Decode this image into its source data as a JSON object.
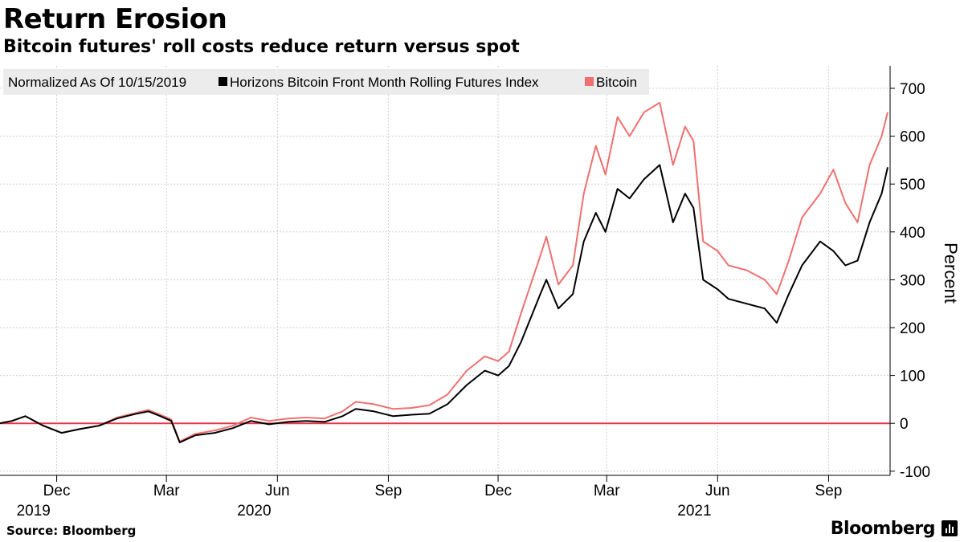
{
  "header": {
    "title": "Return Erosion",
    "subtitle": "Bitcoin futures' roll costs reduce return versus spot"
  },
  "footer": {
    "source": "Source: Bloomberg",
    "brand": "Bloomberg"
  },
  "chart_data": {
    "type": "line",
    "legend": {
      "note": "Normalized As Of 10/15/2019",
      "placement": "top-left"
    },
    "ylabel": "Percent",
    "xlabel": "",
    "ylim": [
      -100,
      700
    ],
    "xlim": [
      "2019-10-15",
      "2021-10-22"
    ],
    "y_ticks": [
      -100,
      0,
      100,
      200,
      300,
      400,
      500,
      600,
      700
    ],
    "y_axis_side": "right",
    "x_ticks": [
      {
        "date": "2019-12-01",
        "label": "Dec",
        "year": "2019"
      },
      {
        "date": "2020-03-01",
        "label": "Mar",
        "year": ""
      },
      {
        "date": "2020-06-01",
        "label": "Jun",
        "year": "2020"
      },
      {
        "date": "2020-09-01",
        "label": "Sep",
        "year": ""
      },
      {
        "date": "2020-12-01",
        "label": "Dec",
        "year": ""
      },
      {
        "date": "2021-03-01",
        "label": "Mar",
        "year": ""
      },
      {
        "date": "2021-06-01",
        "label": "Jun",
        "year": "2021"
      },
      {
        "date": "2021-09-01",
        "label": "Sep",
        "year": ""
      }
    ],
    "grid": true,
    "reference_line": {
      "y": 0,
      "color": "#e8364a"
    },
    "series": [
      {
        "name": "Horizons Bitcoin Front Month Rolling Futures Index",
        "color": "#000000",
        "points": [
          [
            "2019-10-15",
            0
          ],
          [
            "2019-10-25",
            5
          ],
          [
            "2019-11-05",
            15
          ],
          [
            "2019-11-20",
            -5
          ],
          [
            "2019-12-05",
            -20
          ],
          [
            "2019-12-20",
            -12
          ],
          [
            "2020-01-05",
            -5
          ],
          [
            "2020-01-20",
            10
          ],
          [
            "2020-02-05",
            20
          ],
          [
            "2020-02-15",
            25
          ],
          [
            "2020-02-25",
            15
          ],
          [
            "2020-03-05",
            5
          ],
          [
            "2020-03-12",
            -40
          ],
          [
            "2020-03-25",
            -25
          ],
          [
            "2020-04-10",
            -20
          ],
          [
            "2020-04-25",
            -10
          ],
          [
            "2020-05-10",
            5
          ],
          [
            "2020-05-25",
            -2
          ],
          [
            "2020-06-10",
            3
          ],
          [
            "2020-06-25",
            5
          ],
          [
            "2020-07-10",
            3
          ],
          [
            "2020-07-25",
            15
          ],
          [
            "2020-08-05",
            30
          ],
          [
            "2020-08-20",
            25
          ],
          [
            "2020-09-05",
            15
          ],
          [
            "2020-09-20",
            18
          ],
          [
            "2020-10-05",
            20
          ],
          [
            "2020-10-20",
            40
          ],
          [
            "2020-11-05",
            80
          ],
          [
            "2020-11-20",
            110
          ],
          [
            "2020-12-01",
            100
          ],
          [
            "2020-12-10",
            120
          ],
          [
            "2020-12-20",
            170
          ],
          [
            "2021-01-05",
            270
          ],
          [
            "2021-01-10",
            300
          ],
          [
            "2021-01-20",
            240
          ],
          [
            "2021-02-01",
            270
          ],
          [
            "2021-02-10",
            380
          ],
          [
            "2021-02-20",
            440
          ],
          [
            "2021-02-28",
            400
          ],
          [
            "2021-03-10",
            490
          ],
          [
            "2021-03-20",
            470
          ],
          [
            "2021-04-01",
            510
          ],
          [
            "2021-04-14",
            540
          ],
          [
            "2021-04-25",
            420
          ],
          [
            "2021-05-05",
            480
          ],
          [
            "2021-05-12",
            450
          ],
          [
            "2021-05-20",
            300
          ],
          [
            "2021-06-01",
            280
          ],
          [
            "2021-06-10",
            260
          ],
          [
            "2021-06-25",
            250
          ],
          [
            "2021-07-10",
            240
          ],
          [
            "2021-07-20",
            210
          ],
          [
            "2021-07-30",
            270
          ],
          [
            "2021-08-10",
            330
          ],
          [
            "2021-08-25",
            380
          ],
          [
            "2021-09-05",
            360
          ],
          [
            "2021-09-15",
            330
          ],
          [
            "2021-09-25",
            340
          ],
          [
            "2021-10-05",
            420
          ],
          [
            "2021-10-15",
            480
          ],
          [
            "2021-10-20",
            535
          ]
        ]
      },
      {
        "name": "Bitcoin",
        "color": "#f07070",
        "points": [
          [
            "2019-10-15",
            0
          ],
          [
            "2019-10-25",
            5
          ],
          [
            "2019-11-05",
            15
          ],
          [
            "2019-11-20",
            -5
          ],
          [
            "2019-12-05",
            -20
          ],
          [
            "2019-12-20",
            -12
          ],
          [
            "2020-01-05",
            -5
          ],
          [
            "2020-01-20",
            12
          ],
          [
            "2020-02-05",
            22
          ],
          [
            "2020-02-15",
            28
          ],
          [
            "2020-02-25",
            18
          ],
          [
            "2020-03-05",
            8
          ],
          [
            "2020-03-12",
            -38
          ],
          [
            "2020-03-25",
            -22
          ],
          [
            "2020-04-10",
            -15
          ],
          [
            "2020-04-25",
            -5
          ],
          [
            "2020-05-10",
            12
          ],
          [
            "2020-05-25",
            5
          ],
          [
            "2020-06-10",
            10
          ],
          [
            "2020-06-25",
            12
          ],
          [
            "2020-07-10",
            10
          ],
          [
            "2020-07-25",
            25
          ],
          [
            "2020-08-05",
            45
          ],
          [
            "2020-08-20",
            40
          ],
          [
            "2020-09-05",
            30
          ],
          [
            "2020-09-20",
            32
          ],
          [
            "2020-10-05",
            38
          ],
          [
            "2020-10-20",
            60
          ],
          [
            "2020-11-05",
            110
          ],
          [
            "2020-11-20",
            140
          ],
          [
            "2020-12-01",
            130
          ],
          [
            "2020-12-10",
            150
          ],
          [
            "2020-12-20",
            230
          ],
          [
            "2021-01-05",
            350
          ],
          [
            "2021-01-10",
            390
          ],
          [
            "2021-01-20",
            290
          ],
          [
            "2021-02-01",
            330
          ],
          [
            "2021-02-10",
            480
          ],
          [
            "2021-02-20",
            580
          ],
          [
            "2021-02-28",
            520
          ],
          [
            "2021-03-10",
            640
          ],
          [
            "2021-03-20",
            600
          ],
          [
            "2021-04-01",
            650
          ],
          [
            "2021-04-14",
            670
          ],
          [
            "2021-04-25",
            540
          ],
          [
            "2021-05-05",
            620
          ],
          [
            "2021-05-12",
            590
          ],
          [
            "2021-05-20",
            380
          ],
          [
            "2021-06-01",
            360
          ],
          [
            "2021-06-10",
            330
          ],
          [
            "2021-06-25",
            320
          ],
          [
            "2021-07-10",
            300
          ],
          [
            "2021-07-20",
            270
          ],
          [
            "2021-07-30",
            340
          ],
          [
            "2021-08-10",
            430
          ],
          [
            "2021-08-25",
            480
          ],
          [
            "2021-09-05",
            530
          ],
          [
            "2021-09-15",
            460
          ],
          [
            "2021-09-25",
            420
          ],
          [
            "2021-10-05",
            540
          ],
          [
            "2021-10-15",
            600
          ],
          [
            "2021-10-20",
            650
          ]
        ]
      }
    ]
  }
}
